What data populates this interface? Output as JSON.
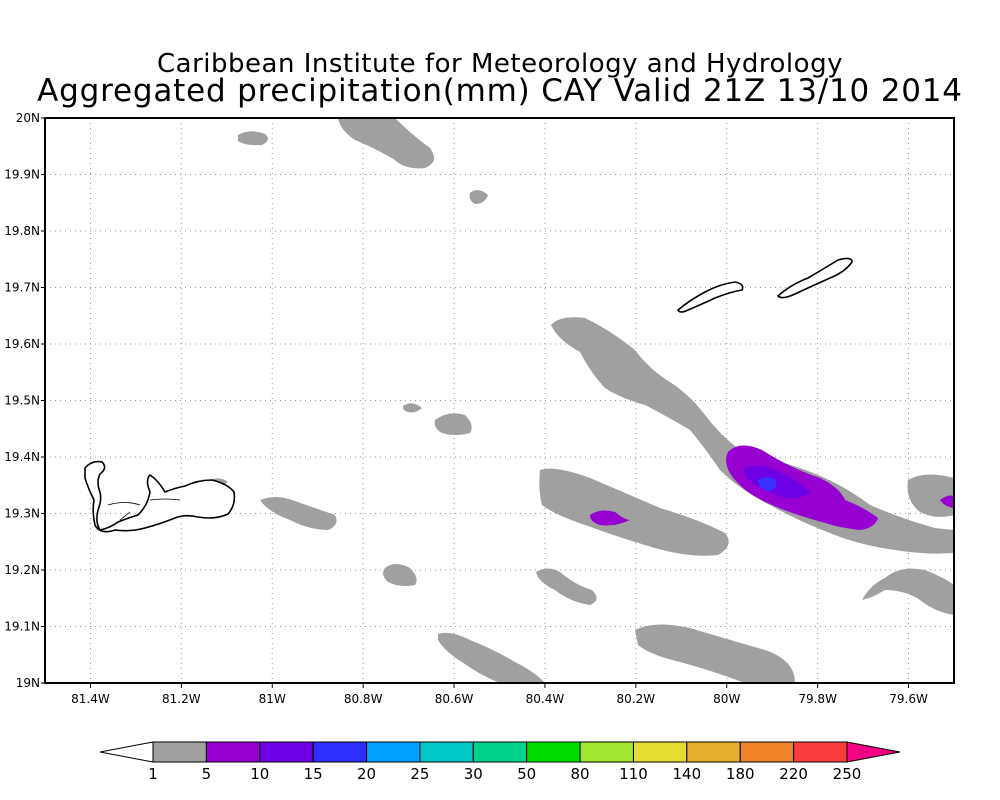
{
  "title_line1": "Caribbean Institute for Meteorology and Hydrology",
  "title_line2": "Aggregated precipitation(mm) CAY Valid 21Z 13/10 2014",
  "map": {
    "lon_range": [
      -81.5,
      -79.5
    ],
    "lat_range": [
      19.0,
      20.0
    ],
    "grid": true,
    "lat_ticks": [
      "19N",
      "19.1N",
      "19.2N",
      "19.3N",
      "19.4N",
      "19.5N",
      "19.6N",
      "19.7N",
      "19.8N",
      "19.9N",
      "20N"
    ],
    "lon_ticks": [
      "81.4W",
      "81.2W",
      "81W",
      "80.8W",
      "80.6W",
      "80.4W",
      "80.2W",
      "80W",
      "79.8W",
      "79.6W"
    ],
    "rain_color": "#a0a0a0",
    "heavy_color": "#9600d0",
    "peak_color": "#3a30ff",
    "land_features": [
      "Grand Cayman",
      "Little Cayman",
      "Cayman Brac"
    ]
  },
  "colorbar": {
    "labels": [
      "1",
      "5",
      "10",
      "15",
      "20",
      "25",
      "30",
      "50",
      "80",
      "110",
      "140",
      "180",
      "220",
      "250"
    ],
    "colors": [
      "#ffffff",
      "#a0a0a0",
      "#9600d0",
      "#6e00e6",
      "#2e2eff",
      "#00a0ff",
      "#00c8c8",
      "#00d28c",
      "#00dc00",
      "#a0e632",
      "#e6dc32",
      "#e6af2d",
      "#f08228",
      "#fa3c3c",
      "#f00082"
    ]
  }
}
